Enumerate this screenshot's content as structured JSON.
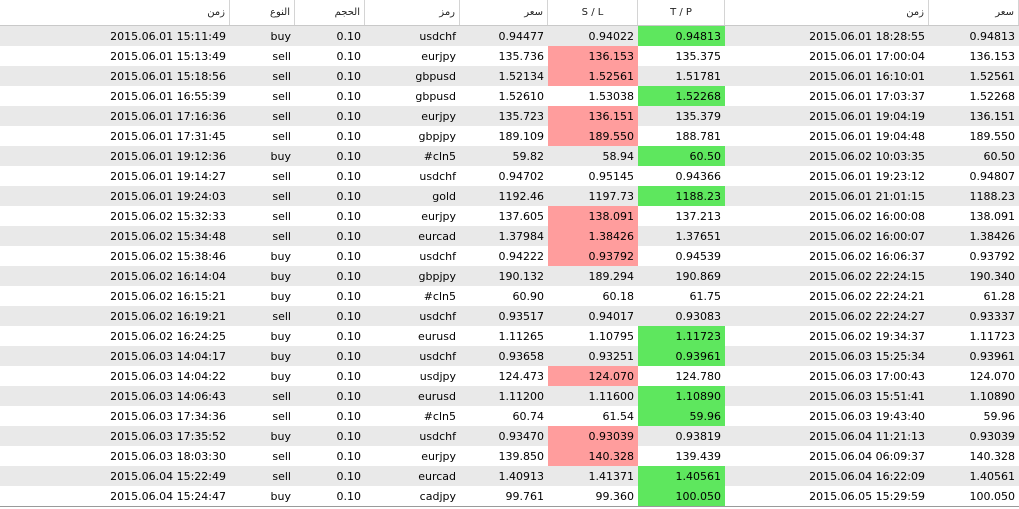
{
  "headers": {
    "time_open": "زمن",
    "type": "النوع",
    "volume": "الحجم",
    "symbol": "رمز",
    "price_open": "سعر",
    "sl": "S / L",
    "tp": "T / P",
    "time_close": "زمن",
    "price_close": "سعر"
  },
  "rows": [
    {
      "t": "2015.06.01 15:11:49",
      "type": "buy",
      "vol": "0.10",
      "sym": "usdchf",
      "p": "0.94477",
      "sl": "0.94022",
      "tp": "0.94813",
      "tc": "2015.06.01 18:28:55",
      "pc": "0.94813",
      "hit": "tp"
    },
    {
      "t": "2015.06.01 15:13:49",
      "type": "sell",
      "vol": "0.10",
      "sym": "eurjpy",
      "p": "135.736",
      "sl": "136.153",
      "tp": "135.375",
      "tc": "2015.06.01 17:00:04",
      "pc": "136.153",
      "hit": "sl"
    },
    {
      "t": "2015.06.01 15:18:56",
      "type": "sell",
      "vol": "0.10",
      "sym": "gbpusd",
      "p": "1.52134",
      "sl": "1.52561",
      "tp": "1.51781",
      "tc": "2015.06.01 16:10:01",
      "pc": "1.52561",
      "hit": "sl"
    },
    {
      "t": "2015.06.01 16:55:39",
      "type": "sell",
      "vol": "0.10",
      "sym": "gbpusd",
      "p": "1.52610",
      "sl": "1.53038",
      "tp": "1.52268",
      "tc": "2015.06.01 17:03:37",
      "pc": "1.52268",
      "hit": "tp"
    },
    {
      "t": "2015.06.01 17:16:36",
      "type": "sell",
      "vol": "0.10",
      "sym": "eurjpy",
      "p": "135.723",
      "sl": "136.151",
      "tp": "135.379",
      "tc": "2015.06.01 19:04:19",
      "pc": "136.151",
      "hit": "sl"
    },
    {
      "t": "2015.06.01 17:31:45",
      "type": "sell",
      "vol": "0.10",
      "sym": "gbpjpy",
      "p": "189.109",
      "sl": "189.550",
      "tp": "188.781",
      "tc": "2015.06.01 19:04:48",
      "pc": "189.550",
      "hit": "sl"
    },
    {
      "t": "2015.06.01 19:12:36",
      "type": "buy",
      "vol": "0.10",
      "sym": "#cln5",
      "p": "59.82",
      "sl": "58.94",
      "tp": "60.50",
      "tc": "2015.06.02 10:03:35",
      "pc": "60.50",
      "hit": "tp"
    },
    {
      "t": "2015.06.01 19:14:27",
      "type": "sell",
      "vol": "0.10",
      "sym": "usdchf",
      "p": "0.94702",
      "sl": "0.95145",
      "tp": "0.94366",
      "tc": "2015.06.01 19:23:12",
      "pc": "0.94807",
      "hit": ""
    },
    {
      "t": "2015.06.01 19:24:03",
      "type": "sell",
      "vol": "0.10",
      "sym": "gold",
      "p": "1192.46",
      "sl": "1197.73",
      "tp": "1188.23",
      "tc": "2015.06.01 21:01:15",
      "pc": "1188.23",
      "hit": "tp"
    },
    {
      "t": "2015.06.02 15:32:33",
      "type": "sell",
      "vol": "0.10",
      "sym": "eurjpy",
      "p": "137.605",
      "sl": "138.091",
      "tp": "137.213",
      "tc": "2015.06.02 16:00:08",
      "pc": "138.091",
      "hit": "sl"
    },
    {
      "t": "2015.06.02 15:34:48",
      "type": "sell",
      "vol": "0.10",
      "sym": "eurcad",
      "p": "1.37984",
      "sl": "1.38426",
      "tp": "1.37651",
      "tc": "2015.06.02 16:00:07",
      "pc": "1.38426",
      "hit": "sl"
    },
    {
      "t": "2015.06.02 15:38:46",
      "type": "buy",
      "vol": "0.10",
      "sym": "usdchf",
      "p": "0.94222",
      "sl": "0.93792",
      "tp": "0.94539",
      "tc": "2015.06.02 16:06:37",
      "pc": "0.93792",
      "hit": "sl"
    },
    {
      "t": "2015.06.02 16:14:04",
      "type": "buy",
      "vol": "0.10",
      "sym": "gbpjpy",
      "p": "190.132",
      "sl": "189.294",
      "tp": "190.869",
      "tc": "2015.06.02 22:24:15",
      "pc": "190.340",
      "hit": ""
    },
    {
      "t": "2015.06.02 16:15:21",
      "type": "buy",
      "vol": "0.10",
      "sym": "#cln5",
      "p": "60.90",
      "sl": "60.18",
      "tp": "61.75",
      "tc": "2015.06.02 22:24:21",
      "pc": "61.28",
      "hit": ""
    },
    {
      "t": "2015.06.02 16:19:21",
      "type": "sell",
      "vol": "0.10",
      "sym": "usdchf",
      "p": "0.93517",
      "sl": "0.94017",
      "tp": "0.93083",
      "tc": "2015.06.02 22:24:27",
      "pc": "0.93337",
      "hit": ""
    },
    {
      "t": "2015.06.02 16:24:25",
      "type": "buy",
      "vol": "0.10",
      "sym": "eurusd",
      "p": "1.11265",
      "sl": "1.10795",
      "tp": "1.11723",
      "tc": "2015.06.02 19:34:37",
      "pc": "1.11723",
      "hit": "tp"
    },
    {
      "t": "2015.06.03 14:04:17",
      "type": "buy",
      "vol": "0.10",
      "sym": "usdchf",
      "p": "0.93658",
      "sl": "0.93251",
      "tp": "0.93961",
      "tc": "2015.06.03 15:25:34",
      "pc": "0.93961",
      "hit": "tp"
    },
    {
      "t": "2015.06.03 14:04:22",
      "type": "buy",
      "vol": "0.10",
      "sym": "usdjpy",
      "p": "124.473",
      "sl": "124.070",
      "tp": "124.780",
      "tc": "2015.06.03 17:00:43",
      "pc": "124.070",
      "hit": "sl"
    },
    {
      "t": "2015.06.03 14:06:43",
      "type": "sell",
      "vol": "0.10",
      "sym": "eurusd",
      "p": "1.11200",
      "sl": "1.11600",
      "tp": "1.10890",
      "tc": "2015.06.03 15:51:41",
      "pc": "1.10890",
      "hit": "tp"
    },
    {
      "t": "2015.06.03 17:34:36",
      "type": "sell",
      "vol": "0.10",
      "sym": "#cln5",
      "p": "60.74",
      "sl": "61.54",
      "tp": "59.96",
      "tc": "2015.06.03 19:43:40",
      "pc": "59.96",
      "hit": "tp"
    },
    {
      "t": "2015.06.03 17:35:52",
      "type": "buy",
      "vol": "0.10",
      "sym": "usdchf",
      "p": "0.93470",
      "sl": "0.93039",
      "tp": "0.93819",
      "tc": "2015.06.04 11:21:13",
      "pc": "0.93039",
      "hit": "sl"
    },
    {
      "t": "2015.06.03 18:03:30",
      "type": "sell",
      "vol": "0.10",
      "sym": "eurjpy",
      "p": "139.850",
      "sl": "140.328",
      "tp": "139.439",
      "tc": "2015.06.04 06:09:37",
      "pc": "140.328",
      "hit": "sl"
    },
    {
      "t": "2015.06.04 15:22:49",
      "type": "sell",
      "vol": "0.10",
      "sym": "eurcad",
      "p": "1.40913",
      "sl": "1.41371",
      "tp": "1.40561",
      "tc": "2015.06.04 16:22:09",
      "pc": "1.40561",
      "hit": "tp"
    },
    {
      "t": "2015.06.04 15:24:47",
      "type": "buy",
      "vol": "0.10",
      "sym": "cadjpy",
      "p": "99.761",
      "sl": "99.360",
      "tp": "100.050",
      "tc": "2015.06.05 15:29:59",
      "pc": "100.050",
      "hit": "tp"
    }
  ],
  "colors": {
    "sl_hit": "#ff9d9d",
    "tp_hit": "#5ee75e",
    "alt_row": "#e9e9e9"
  }
}
